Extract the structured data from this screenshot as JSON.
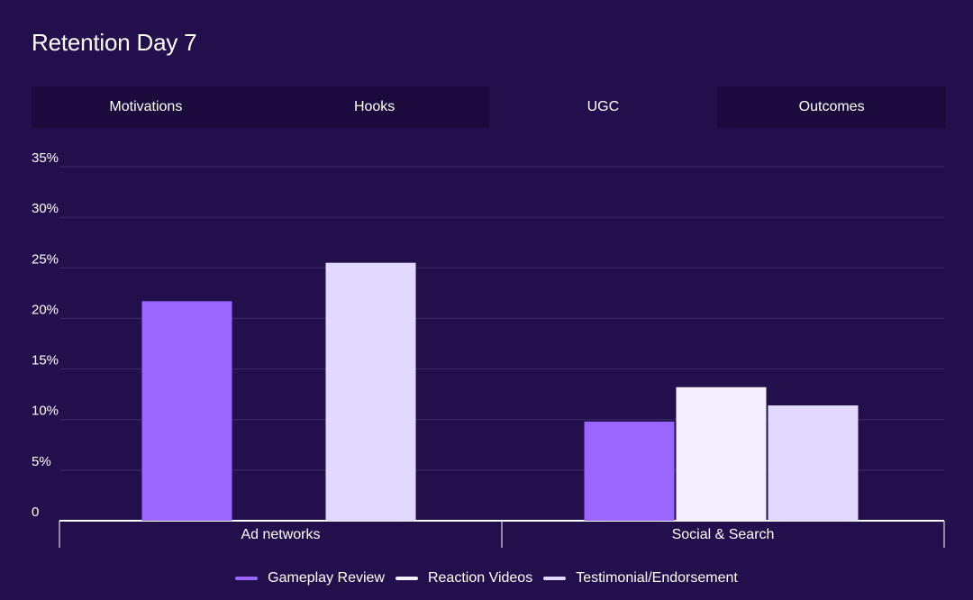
{
  "header": {
    "title": "Retention Day 7"
  },
  "tabs": [
    {
      "label": "Motivations",
      "active": false
    },
    {
      "label": "Hooks",
      "active": false
    },
    {
      "label": "UGC",
      "active": true
    },
    {
      "label": "Outcomes",
      "active": false
    }
  ],
  "colors": {
    "background": "#220f4c",
    "tab_bg": "#1a0b3c",
    "grid": "#3f2c6a",
    "axis": "#ffffff"
  },
  "chart_data": {
    "type": "bar",
    "title": "Retention Day 7",
    "categories": [
      "Ad networks",
      "Social & Search"
    ],
    "series": [
      {
        "name": "Gameplay Review",
        "color": "#9966ff",
        "values": [
          21.7,
          9.8
        ]
      },
      {
        "name": "Reaction Videos",
        "color": "#f4f0ff",
        "values": [
          null,
          13.2
        ]
      },
      {
        "name": "Testimonial/Endorsement",
        "color": "#e2d9ff",
        "values": [
          25.5,
          11.4
        ]
      }
    ],
    "ylim": [
      0,
      35
    ],
    "yticks": [
      0,
      5,
      10,
      15,
      20,
      25,
      30,
      35
    ],
    "ytick_labels": [
      "0",
      "5%",
      "10%",
      "15%",
      "20%",
      "25%",
      "30%",
      "35%"
    ],
    "ylabel_format": "percent",
    "grid": true,
    "legend_position": "bottom"
  }
}
